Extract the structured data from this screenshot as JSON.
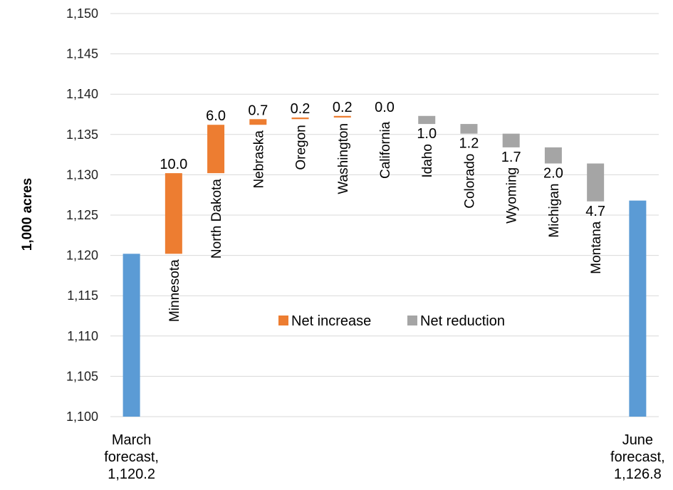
{
  "chart_data": {
    "type": "bar",
    "subtype": "waterfall",
    "ylabel": "1,000 acres",
    "ylim": [
      1100,
      1150
    ],
    "yticks": [
      "1,100",
      "1,105",
      "1,110",
      "1,115",
      "1,120",
      "1,125",
      "1,130",
      "1,135",
      "1,140",
      "1,145",
      "1,150"
    ],
    "gridlines": true,
    "legend": {
      "position": "center",
      "items": [
        {
          "label": "Net increase",
          "color": "#ed7d31"
        },
        {
          "label": "Net reduction",
          "color": "#a5a5a5"
        }
      ]
    },
    "start": {
      "label_lines": [
        "March",
        "forecast,",
        "1,120.2"
      ],
      "value": 1120.2,
      "color": "#5b9bd5"
    },
    "end": {
      "label_lines": [
        "June",
        "forecast,",
        "1,126.8"
      ],
      "value": 1126.8,
      "color": "#5b9bd5"
    },
    "steps": [
      {
        "category": "Minnesota",
        "change": 10.0,
        "label": "10.0",
        "type": "increase"
      },
      {
        "category": "North Dakota",
        "change": 6.0,
        "label": "6.0",
        "type": "increase"
      },
      {
        "category": "Nebraska",
        "change": 0.7,
        "label": "0.7",
        "type": "increase"
      },
      {
        "category": "Oregon",
        "change": 0.2,
        "label": "0.2",
        "type": "increase"
      },
      {
        "category": "Washington",
        "change": 0.2,
        "label": "0.2",
        "type": "increase"
      },
      {
        "category": "California",
        "change": 0.0,
        "label": "0.0",
        "type": "increase"
      },
      {
        "category": "Idaho",
        "change": -1.0,
        "label": "1.0",
        "type": "reduction"
      },
      {
        "category": "Colorado",
        "change": -1.2,
        "label": "1.2",
        "type": "reduction"
      },
      {
        "category": "Wyoming",
        "change": -1.7,
        "label": "1.7",
        "type": "reduction"
      },
      {
        "category": "Michigan",
        "change": -2.0,
        "label": "2.0",
        "type": "reduction"
      },
      {
        "category": "Montana",
        "change": -4.7,
        "label": "4.7",
        "type": "reduction"
      }
    ]
  }
}
